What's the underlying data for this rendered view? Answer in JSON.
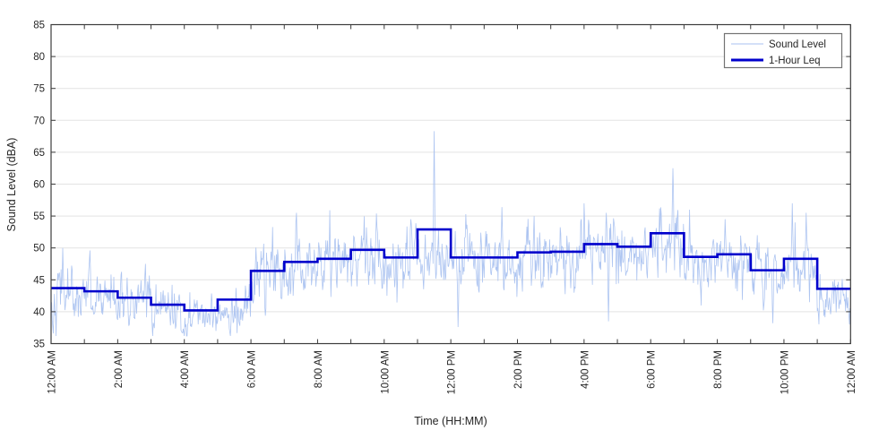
{
  "figure": {
    "background": "#ffffff",
    "xlabel": "Time (HH:MM)",
    "ylabel": "Sound Level (dBA)"
  },
  "chart_data": {
    "type": "line",
    "title": "",
    "xlabel": "Time (HH:MM)",
    "ylabel": "Sound Level (dBA)",
    "xlim_hours": [
      0,
      24
    ],
    "ylim": [
      35,
      85
    ],
    "y_ticks": [
      35,
      40,
      45,
      50,
      55,
      60,
      65,
      70,
      75,
      80,
      85
    ],
    "x_major_tick_hours": [
      0,
      2,
      4,
      6,
      8,
      10,
      12,
      14,
      16,
      18,
      20,
      22,
      24
    ],
    "x_tick_labels": [
      "12:00 AM",
      "2:00 AM",
      "4:00 AM",
      "6:00 AM",
      "8:00 AM",
      "10:00 AM",
      "12:00 PM",
      "2:00 PM",
      "4:00 PM",
      "6:00 PM",
      "8:00 PM",
      "10:00 PM",
      "12:00 AM"
    ],
    "x_minor_tick_every_hours": 1,
    "grid": {
      "horizontal": true,
      "vertical": false
    },
    "colors": {
      "raw_line": "#aac2f0",
      "leq_line": "#0000cc",
      "grid_line": "#e3e3e3",
      "axis": "#3c3c3c",
      "tick_label": "#262626",
      "legend_border": "#737373",
      "background": "#ffffff"
    },
    "legend": {
      "position": "top-right",
      "entries": [
        {
          "label": "Sound Level",
          "color": "#aac2f0",
          "line_width": 1
        },
        {
          "label": "1-Hour Leq",
          "color": "#0000cc",
          "line_width": 3
        }
      ]
    },
    "series": [
      {
        "name": "Sound Level",
        "style": "thin-noisy-line",
        "color": "#aac2f0",
        "resolution_minutes": 1,
        "synthesized_from": {
          "seed": 42,
          "hourly_mean": [
            42.8,
            42.3,
            41.4,
            40.3,
            39.5,
            40.8,
            45.4,
            46.8,
            47.3,
            48.6,
            47.4,
            47.8,
            47.4,
            47.6,
            48.2,
            48.3,
            49.4,
            49.2,
            50.8,
            47.6,
            47.9,
            45.4,
            46.8,
            42.4
          ],
          "hourly_std": [
            2.1,
            2.0,
            2.0,
            2.0,
            1.6,
            2.1,
            2.4,
            2.4,
            2.5,
            2.5,
            2.4,
            2.4,
            2.5,
            2.4,
            2.4,
            2.4,
            2.5,
            2.4,
            2.5,
            2.4,
            2.3,
            2.3,
            2.4,
            2.1
          ],
          "spikes": [
            [
              21,
              50.0
            ],
            [
              70,
              49.6
            ],
            [
              170,
              47.5
            ],
            [
              442,
              55.5
            ],
            [
              502,
              55.9
            ],
            [
              586,
              55.4
            ],
            [
              648,
              54.5
            ],
            [
              690,
              68.3
            ],
            [
              747,
              55.3
            ],
            [
              812,
              56.4
            ],
            [
              870,
              55.0
            ],
            [
              960,
              57.0
            ],
            [
              1000,
              55.5
            ],
            [
              1120,
              62.5
            ],
            [
              1150,
              56.0
            ],
            [
              1214,
              54.5
            ],
            [
              1272,
              52.0
            ],
            [
              1335,
              57.0
            ],
            [
              1360,
              55.5
            ]
          ],
          "dips": [
            [
              4,
              36.6
            ],
            [
              140,
              37.8
            ],
            [
              292,
              38.3
            ],
            [
              733,
              37.6
            ],
            [
              1004,
              38.5
            ],
            [
              1300,
              38.2
            ],
            [
              1438,
              38.0
            ]
          ]
        }
      },
      {
        "name": "1-Hour Leq",
        "style": "stairs",
        "color": "#0000cc",
        "hours": [
          0,
          1,
          2,
          3,
          4,
          5,
          6,
          7,
          8,
          9,
          10,
          11,
          12,
          13,
          14,
          15,
          16,
          17,
          18,
          19,
          20,
          21,
          22,
          23
        ],
        "hourly_values": [
          43.7,
          43.2,
          42.2,
          41.1,
          40.2,
          41.9,
          46.4,
          47.8,
          48.3,
          49.7,
          48.5,
          52.9,
          48.5,
          48.5,
          49.3,
          49.4,
          50.6,
          50.2,
          52.3,
          48.6,
          49.0,
          46.5,
          48.3,
          43.6
        ]
      }
    ]
  }
}
